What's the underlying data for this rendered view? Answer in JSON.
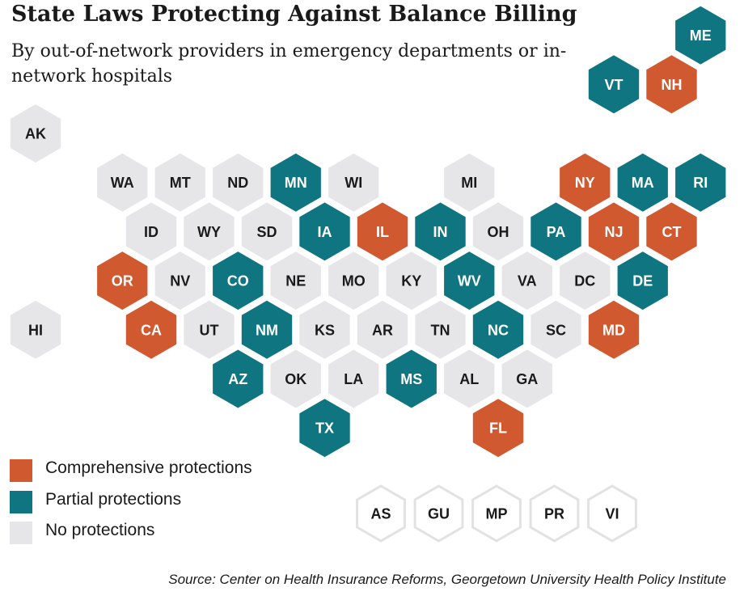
{
  "title": "State Laws Protecting Against Balance Billing",
  "subtitle": "By out-of-network providers in emergency departments or in-network hospitals",
  "colors": {
    "comprehensive": "#d0592f",
    "partial": "#0f7580",
    "none": "#e6e6e8",
    "territory_fill": "#ffffff",
    "territory_stroke": "#e2e2e4"
  },
  "legend": [
    {
      "key": "comprehensive",
      "label": "Comprehensive protections"
    },
    {
      "key": "partial",
      "label": "Partial protections"
    },
    {
      "key": "none",
      "label": "No protections"
    }
  ],
  "states": [
    {
      "abbr": "AK",
      "status": "none",
      "row": 0,
      "col": 0
    },
    {
      "abbr": "ME",
      "status": "partial",
      "row": -2,
      "col": 23
    },
    {
      "abbr": "VT",
      "status": "partial",
      "row": -1,
      "col": 20
    },
    {
      "abbr": "NH",
      "status": "comprehensive",
      "row": -1,
      "col": 22
    },
    {
      "abbr": "WA",
      "status": "none",
      "row": 1,
      "col": 3
    },
    {
      "abbr": "MT",
      "status": "none",
      "row": 1,
      "col": 5
    },
    {
      "abbr": "ND",
      "status": "none",
      "row": 1,
      "col": 7
    },
    {
      "abbr": "MN",
      "status": "partial",
      "row": 1,
      "col": 9
    },
    {
      "abbr": "WI",
      "status": "none",
      "row": 1,
      "col": 11
    },
    {
      "abbr": "MI",
      "status": "none",
      "row": 1,
      "col": 15
    },
    {
      "abbr": "NY",
      "status": "comprehensive",
      "row": 1,
      "col": 19
    },
    {
      "abbr": "MA",
      "status": "partial",
      "row": 1,
      "col": 21
    },
    {
      "abbr": "RI",
      "status": "partial",
      "row": 1,
      "col": 23
    },
    {
      "abbr": "ID",
      "status": "none",
      "row": 2,
      "col": 4
    },
    {
      "abbr": "WY",
      "status": "none",
      "row": 2,
      "col": 6
    },
    {
      "abbr": "SD",
      "status": "none",
      "row": 2,
      "col": 8
    },
    {
      "abbr": "IA",
      "status": "partial",
      "row": 2,
      "col": 10
    },
    {
      "abbr": "IL",
      "status": "comprehensive",
      "row": 2,
      "col": 12
    },
    {
      "abbr": "IN",
      "status": "partial",
      "row": 2,
      "col": 14
    },
    {
      "abbr": "OH",
      "status": "none",
      "row": 2,
      "col": 16
    },
    {
      "abbr": "PA",
      "status": "partial",
      "row": 2,
      "col": 18
    },
    {
      "abbr": "NJ",
      "status": "comprehensive",
      "row": 2,
      "col": 20
    },
    {
      "abbr": "CT",
      "status": "comprehensive",
      "row": 2,
      "col": 22
    },
    {
      "abbr": "OR",
      "status": "comprehensive",
      "row": 3,
      "col": 3
    },
    {
      "abbr": "NV",
      "status": "none",
      "row": 3,
      "col": 5
    },
    {
      "abbr": "CO",
      "status": "partial",
      "row": 3,
      "col": 7
    },
    {
      "abbr": "NE",
      "status": "none",
      "row": 3,
      "col": 9
    },
    {
      "abbr": "MO",
      "status": "none",
      "row": 3,
      "col": 11
    },
    {
      "abbr": "KY",
      "status": "none",
      "row": 3,
      "col": 13
    },
    {
      "abbr": "WV",
      "status": "partial",
      "row": 3,
      "col": 15
    },
    {
      "abbr": "VA",
      "status": "none",
      "row": 3,
      "col": 17
    },
    {
      "abbr": "DC",
      "status": "none",
      "row": 3,
      "col": 19
    },
    {
      "abbr": "DE",
      "status": "partial",
      "row": 3,
      "col": 21
    },
    {
      "abbr": "HI",
      "status": "none",
      "row": 4,
      "col": 0
    },
    {
      "abbr": "CA",
      "status": "comprehensive",
      "row": 4,
      "col": 4
    },
    {
      "abbr": "UT",
      "status": "none",
      "row": 4,
      "col": 6
    },
    {
      "abbr": "NM",
      "status": "partial",
      "row": 4,
      "col": 8
    },
    {
      "abbr": "KS",
      "status": "none",
      "row": 4,
      "col": 10
    },
    {
      "abbr": "AR",
      "status": "none",
      "row": 4,
      "col": 12
    },
    {
      "abbr": "TN",
      "status": "none",
      "row": 4,
      "col": 14
    },
    {
      "abbr": "NC",
      "status": "partial",
      "row": 4,
      "col": 16
    },
    {
      "abbr": "SC",
      "status": "none",
      "row": 4,
      "col": 18
    },
    {
      "abbr": "MD",
      "status": "comprehensive",
      "row": 4,
      "col": 20
    },
    {
      "abbr": "AZ",
      "status": "partial",
      "row": 5,
      "col": 7
    },
    {
      "abbr": "OK",
      "status": "none",
      "row": 5,
      "col": 9
    },
    {
      "abbr": "LA",
      "status": "none",
      "row": 5,
      "col": 11
    },
    {
      "abbr": "MS",
      "status": "partial",
      "row": 5,
      "col": 13
    },
    {
      "abbr": "AL",
      "status": "none",
      "row": 5,
      "col": 15
    },
    {
      "abbr": "GA",
      "status": "none",
      "row": 5,
      "col": 17
    },
    {
      "abbr": "TX",
      "status": "partial",
      "row": 6,
      "col": 10
    },
    {
      "abbr": "FL",
      "status": "comprehensive",
      "row": 6,
      "col": 16
    }
  ],
  "territories": [
    "AS",
    "GU",
    "MP",
    "PR",
    "VI"
  ],
  "source": "Source: Center on Health Insurance Reforms, Georgetown University Health Policy Institute"
}
